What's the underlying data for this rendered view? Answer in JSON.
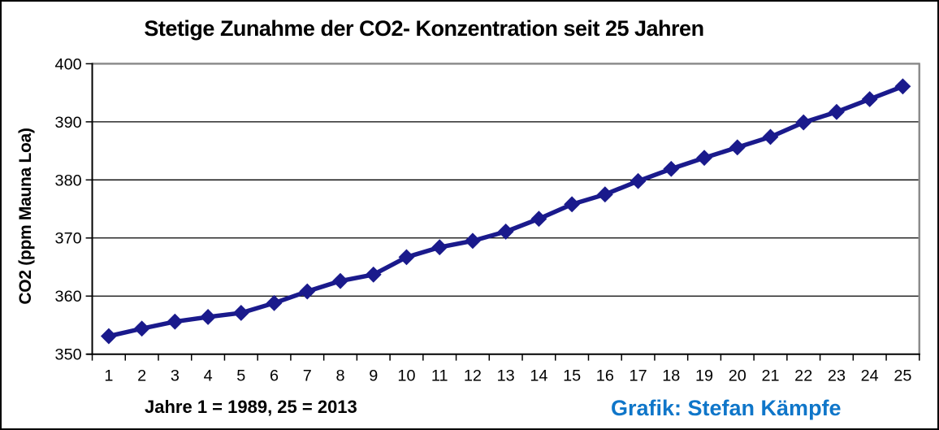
{
  "header": {
    "title": "Stetige Zunahme der CO2- Konzentration seit 25 Jahren"
  },
  "y_axis": {
    "label": "CO2 (ppm Mauna Loa)",
    "tick_labels": [
      "350",
      "360",
      "370",
      "380",
      "390",
      "400"
    ]
  },
  "x_axis": {
    "tick_labels": [
      "1",
      "2",
      "3",
      "4",
      "5",
      "6",
      "7",
      "8",
      "9",
      "10",
      "11",
      "12",
      "13",
      "14",
      "15",
      "16",
      "17",
      "18",
      "19",
      "20",
      "21",
      "22",
      "23",
      "24",
      "25"
    ]
  },
  "footer": {
    "note": "Jahre 1 = 1989, 25 = 2013",
    "credit": "Grafik: Stefan Kämpfe"
  },
  "colors": {
    "series": "#1a1a8c",
    "credit_text": "#0f76c9",
    "gridline": "#000000",
    "plot_border_gray": "#8c8c8c",
    "axis": "#000000",
    "background": "#ffffff",
    "text": "#000000"
  },
  "chart_data": {
    "type": "line",
    "title": "Stetige Zunahme der CO2- Konzentration seit 25 Jahren",
    "x": [
      1,
      2,
      3,
      4,
      5,
      6,
      7,
      8,
      9,
      10,
      11,
      12,
      13,
      14,
      15,
      16,
      17,
      18,
      19,
      20,
      21,
      22,
      23,
      24,
      25
    ],
    "series": [
      {
        "name": "CO2 (ppm Mauna Loa)",
        "values": [
          353.1,
          354.4,
          355.6,
          356.4,
          357.1,
          358.8,
          360.8,
          362.6,
          363.7,
          366.7,
          368.4,
          369.5,
          371.1,
          373.3,
          375.8,
          377.5,
          379.8,
          381.9,
          383.8,
          385.6,
          387.4,
          389.9,
          391.7,
          393.9,
          396.1
        ]
      }
    ],
    "xlabel": "Jahre 1 = 1989, 25 = 2013",
    "ylabel": "CO2 (ppm Mauna Loa)",
    "ylim": [
      350,
      400
    ],
    "ytick_step": 10,
    "yticks": [
      350,
      360,
      370,
      380,
      390,
      400
    ],
    "grid": "horizontal",
    "legend": "none",
    "marker": "diamond",
    "annotations": [
      "Grafik: Stefan Kämpfe"
    ]
  }
}
